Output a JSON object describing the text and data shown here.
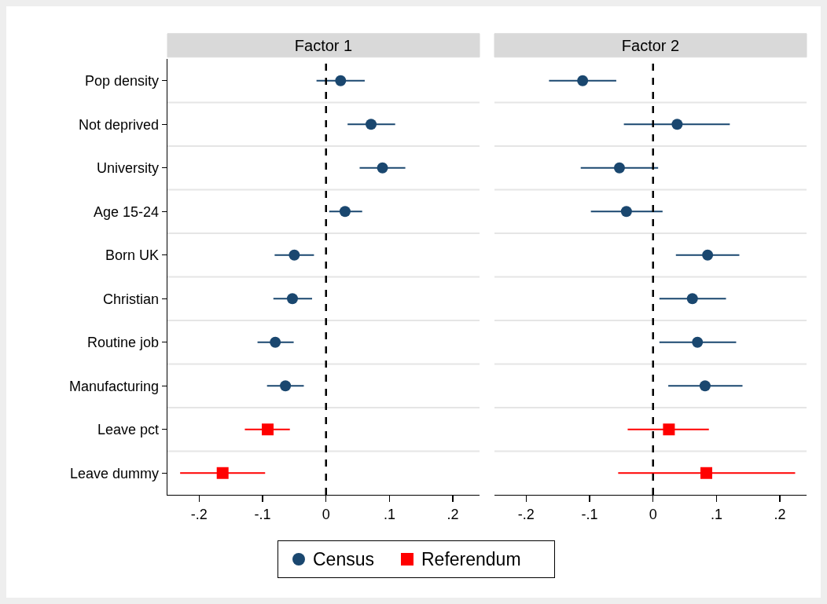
{
  "chart_data": [
    {
      "type": "scatter",
      "title": "Factor 1",
      "orientation": "horizontal",
      "categories": [
        "Pop density",
        "Not deprived",
        "University",
        "Age 15-24",
        "Born UK",
        "Christian",
        "Routine job",
        "Manufacturing",
        "Leave pct",
        "Leave dummy"
      ],
      "series": [
        {
          "name": "Census",
          "color": "#1a476f",
          "marker": "circle",
          "values": [
            0.023,
            0.071,
            0.089,
            0.03,
            -0.05,
            -0.053,
            -0.08,
            -0.064,
            null,
            null
          ],
          "errors": [
            [
              -0.015,
              0.061
            ],
            [
              0.034,
              0.109
            ],
            [
              0.053,
              0.125
            ],
            [
              0.005,
              0.057
            ],
            [
              -0.081,
              -0.019
            ],
            [
              -0.083,
              -0.022
            ],
            [
              -0.108,
              -0.051
            ],
            [
              -0.093,
              -0.035
            ],
            null,
            null
          ]
        },
        {
          "name": "Referendum",
          "color": "#ff0000",
          "marker": "square",
          "values": [
            null,
            null,
            null,
            null,
            null,
            null,
            null,
            null,
            -0.092,
            -0.163
          ],
          "errors": [
            null,
            null,
            null,
            null,
            null,
            null,
            null,
            null,
            [
              -0.128,
              -0.057
            ],
            [
              -0.23,
              -0.096
            ]
          ]
        }
      ],
      "xlim": [
        -0.25,
        0.242
      ],
      "xticks": [
        {
          "value": -0.2,
          "label": "-.2"
        },
        {
          "value": -0.1,
          "label": "-.1"
        },
        0,
        {
          "value": 0.1,
          "label": ".1"
        },
        {
          "value": 0.2,
          "label": ".2"
        }
      ],
      "ref_lines": [
        {
          "axis": "x",
          "value": 0,
          "color": "#000000",
          "line_style": "dashed"
        }
      ],
      "grid": "y",
      "legend": "bottom"
    },
    {
      "type": "scatter",
      "title": "Factor 2",
      "orientation": "horizontal",
      "categories": [
        null,
        null,
        null,
        null,
        null,
        null,
        null,
        null,
        null,
        null
      ],
      "series": [
        {
          "color": "#1a476f",
          "marker": "circle",
          "values": [
            -0.111,
            0.038,
            -0.053,
            -0.042,
            0.086,
            0.062,
            0.07,
            0.082,
            null,
            null
          ],
          "errors": [
            [
              -0.164,
              -0.058
            ],
            [
              -0.046,
              0.121
            ],
            [
              -0.114,
              0.008
            ],
            [
              -0.098,
              0.015
            ],
            [
              0.036,
              0.136
            ],
            [
              0.01,
              0.115
            ],
            [
              0.01,
              0.131
            ],
            [
              0.024,
              0.141
            ],
            null,
            null
          ]
        },
        {
          "color": "#ff0000",
          "marker": "square",
          "values": [
            null,
            null,
            null,
            null,
            null,
            null,
            null,
            null,
            0.025,
            0.084
          ],
          "errors": [
            null,
            null,
            null,
            null,
            null,
            null,
            null,
            null,
            [
              -0.04,
              0.088
            ],
            [
              -0.055,
              0.224
            ]
          ]
        }
      ],
      "xlim": [
        -0.25,
        0.242
      ],
      "xticks": [
        {
          "value": -0.2,
          "label": "-.2"
        },
        {
          "value": -0.1,
          "label": "-.1"
        },
        0,
        {
          "value": 0.1,
          "label": ".1"
        },
        {
          "value": 0.2,
          "label": ".2"
        }
      ],
      "ref_lines": [
        {
          "axis": "x",
          "value": 0,
          "color": "#000000",
          "line_style": "dashed"
        }
      ],
      "grid": "y",
      "tick_labels": "x"
    }
  ]
}
